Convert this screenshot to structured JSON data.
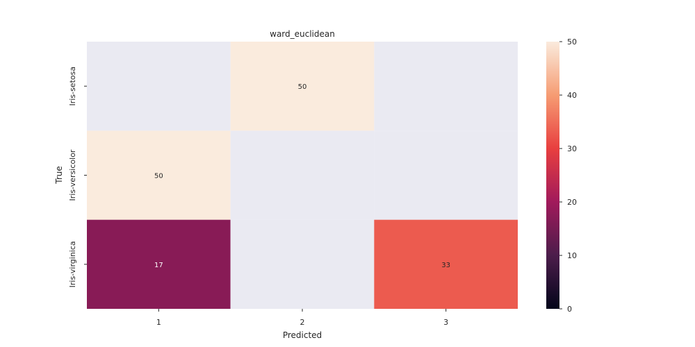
{
  "chart_data": {
    "type": "heatmap",
    "title": "ward_euclidean",
    "xlabel": "Predicted",
    "ylabel": "True",
    "x_categories": [
      "1",
      "2",
      "3"
    ],
    "y_categories": [
      "Iris-setosa",
      "Iris-versicolor",
      "Iris-virginica"
    ],
    "values": [
      [
        0,
        50,
        0
      ],
      [
        50,
        0,
        0
      ],
      [
        17,
        0,
        33
      ]
    ],
    "annotations": [
      [
        "",
        "50",
        ""
      ],
      [
        "50",
        "",
        ""
      ],
      [
        "17",
        "",
        "33"
      ]
    ],
    "zero_cell_color": "#eaeaf2",
    "colorbar": {
      "range": [
        0,
        50
      ],
      "ticks": [
        "0",
        "10",
        "20",
        "30",
        "40",
        "50"
      ],
      "colormap": "rocket",
      "stops": [
        "#03051a",
        "#4c1d4b",
        "#a11a5b",
        "#e83f3f",
        "#f69c73",
        "#faebdd"
      ]
    }
  }
}
